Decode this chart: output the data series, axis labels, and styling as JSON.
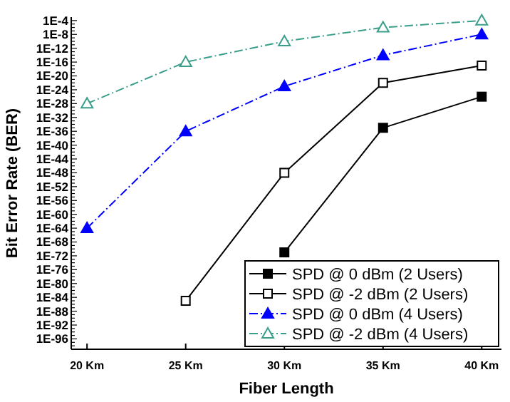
{
  "chart_data": {
    "type": "line",
    "xlabel": "Fiber Length",
    "ylabel": "Bit Error Rate (BER)",
    "log": "y",
    "x": [
      20,
      25,
      30,
      35,
      40
    ],
    "xlim": [
      19.2,
      41
    ],
    "xticks": [
      {
        "value": 20,
        "label": "20 Km"
      },
      {
        "value": 25,
        "label": "25 Km"
      },
      {
        "value": 30,
        "label": "30 Km"
      },
      {
        "value": 35,
        "label": "35 Km"
      },
      {
        "value": 40,
        "label": "40 Km"
      }
    ],
    "ylim": [
      1e-99,
      0.001
    ],
    "yticks": [
      {
        "value": 0.0001,
        "label": "1E-4"
      },
      {
        "value": 1e-05,
        "label": null
      },
      {
        "value": 1e-06,
        "label": null
      },
      {
        "value": 1e-07,
        "label": null
      },
      {
        "value": 1e-08,
        "label": "1E-8"
      },
      {
        "value": 1e-09,
        "label": null
      },
      {
        "value": 1e-10,
        "label": null
      },
      {
        "value": 1e-11,
        "label": null
      },
      {
        "value": 1e-12,
        "label": "1E-12"
      },
      {
        "value": 1e-13,
        "label": null
      },
      {
        "value": 1e-14,
        "label": null
      },
      {
        "value": 1e-15,
        "label": null
      },
      {
        "value": 1e-16,
        "label": "1E-16"
      },
      {
        "value": 1e-17,
        "label": null
      },
      {
        "value": 1e-18,
        "label": null
      },
      {
        "value": 1e-19,
        "label": null
      },
      {
        "value": 1e-20,
        "label": "1E-20"
      },
      {
        "value": 1e-21,
        "label": null
      },
      {
        "value": 1e-22,
        "label": null
      },
      {
        "value": 1e-23,
        "label": null
      },
      {
        "value": 1e-24,
        "label": "1E-24"
      },
      {
        "value": 1e-25,
        "label": null
      },
      {
        "value": 1e-26,
        "label": null
      },
      {
        "value": 1e-27,
        "label": null
      },
      {
        "value": 1e-28,
        "label": "1E-28"
      },
      {
        "value": 1e-29,
        "label": null
      },
      {
        "value": 1e-30,
        "label": null
      },
      {
        "value": 1e-31,
        "label": null
      },
      {
        "value": 1e-32,
        "label": "1E-32"
      },
      {
        "value": 1e-33,
        "label": null
      },
      {
        "value": 1e-34,
        "label": null
      },
      {
        "value": 1e-35,
        "label": null
      },
      {
        "value": 1e-36,
        "label": "1E-36"
      },
      {
        "value": 1e-37,
        "label": null
      },
      {
        "value": 1e-38,
        "label": null
      },
      {
        "value": 1e-39,
        "label": null
      },
      {
        "value": 1e-40,
        "label": "1E-40"
      },
      {
        "value": 1e-41,
        "label": null
      },
      {
        "value": 1e-42,
        "label": null
      },
      {
        "value": 1e-43,
        "label": null
      },
      {
        "value": 1e-44,
        "label": "1E-44"
      },
      {
        "value": 1e-45,
        "label": null
      },
      {
        "value": 1e-46,
        "label": null
      },
      {
        "value": 1e-47,
        "label": null
      },
      {
        "value": 1e-48,
        "label": "1E-48"
      },
      {
        "value": 1e-49,
        "label": null
      },
      {
        "value": 1e-50,
        "label": null
      },
      {
        "value": 1e-51,
        "label": null
      },
      {
        "value": 1e-52,
        "label": "1E-52"
      },
      {
        "value": 1e-53,
        "label": null
      },
      {
        "value": 1e-54,
        "label": null
      },
      {
        "value": 1e-55,
        "label": null
      },
      {
        "value": 1e-56,
        "label": "1E-56"
      },
      {
        "value": 1e-57,
        "label": null
      },
      {
        "value": 1e-58,
        "label": null
      },
      {
        "value": 1e-59,
        "label": null
      },
      {
        "value": 1e-60,
        "label": "1E-60"
      },
      {
        "value": 1e-61,
        "label": null
      },
      {
        "value": 1e-62,
        "label": null
      },
      {
        "value": 1e-63,
        "label": null
      },
      {
        "value": 1e-64,
        "label": "1E-64"
      },
      {
        "value": 1e-65,
        "label": null
      },
      {
        "value": 1e-66,
        "label": null
      },
      {
        "value": 1e-67,
        "label": null
      },
      {
        "value": 1e-68,
        "label": "1E-68"
      },
      {
        "value": 1e-69,
        "label": null
      },
      {
        "value": 1e-70,
        "label": null
      },
      {
        "value": 1e-71,
        "label": null
      },
      {
        "value": 1e-72,
        "label": "1E-72"
      },
      {
        "value": 1e-73,
        "label": null
      },
      {
        "value": 1e-74,
        "label": null
      },
      {
        "value": 1e-75,
        "label": null
      },
      {
        "value": 1e-76,
        "label": "1E-76"
      },
      {
        "value": 1e-77,
        "label": null
      },
      {
        "value": 1e-78,
        "label": null
      },
      {
        "value": 1e-79,
        "label": null
      },
      {
        "value": 1e-80,
        "label": "1E-80"
      },
      {
        "value": 1e-81,
        "label": null
      },
      {
        "value": 1e-82,
        "label": null
      },
      {
        "value": 1e-83,
        "label": null
      },
      {
        "value": 1e-84,
        "label": "1E-84"
      },
      {
        "value": 1e-85,
        "label": null
      },
      {
        "value": 1e-86,
        "label": null
      },
      {
        "value": 1e-87,
        "label": null
      },
      {
        "value": 1e-88,
        "label": "1E-88"
      },
      {
        "value": 1e-89,
        "label": null
      },
      {
        "value": 1e-90,
        "label": null
      },
      {
        "value": 1e-91,
        "label": null
      },
      {
        "value": 1e-92,
        "label": "1E-92"
      },
      {
        "value": 1e-93,
        "label": null
      },
      {
        "value": 1e-94,
        "label": null
      },
      {
        "value": 1e-95,
        "label": null
      },
      {
        "value": 1e-96,
        "label": "1E-96"
      },
      {
        "value": 1e-97,
        "label": null
      },
      {
        "value": 1e-98,
        "label": null
      }
    ],
    "grid": false,
    "legend": "bottom right",
    "series": [
      {
        "name": "SPD @ 0 dBm (2 Users)",
        "color": "#000000",
        "marker": "square",
        "line_style": "solid",
        "values": [
          null,
          null,
          1e-71,
          1e-35,
          1e-26
        ]
      },
      {
        "name": "SPD @ -2 dBm (2 Users)",
        "color": "#000000",
        "marker": "square",
        "line_style": "solid",
        "values": [
          null,
          1e-85,
          1e-48,
          1e-22,
          1e-17
        ]
      },
      {
        "name": "SPD @ 0 dBm (4 Users)",
        "color": "#0000ff",
        "marker": "triangle",
        "line_style": "dashed",
        "values": [
          1e-64,
          1e-36,
          1e-23,
          1e-14,
          1e-08
        ]
      },
      {
        "name": "SPD @ -2 dBm (4 Users)",
        "color": "#3a9e8a",
        "marker": "triangle",
        "line_style": "dashed",
        "values": [
          1e-28,
          1e-16,
          1e-10,
          1e-06,
          0.0001
        ]
      }
    ]
  }
}
